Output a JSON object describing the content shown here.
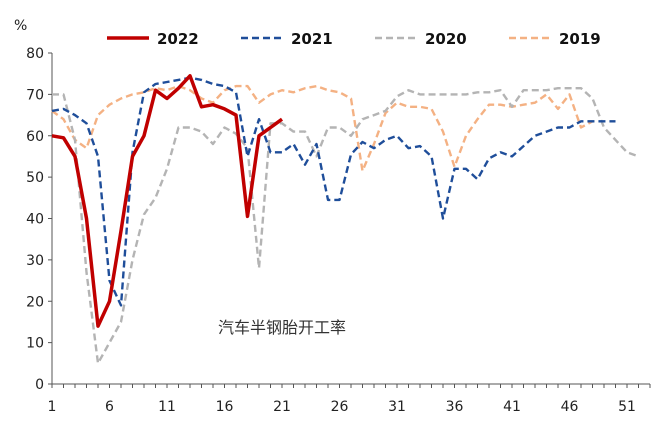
{
  "chart_data": {
    "type": "line",
    "y_unit": "%",
    "annotation": "汽车半钢胎开工率",
    "xlabel": "",
    "ylabel": "",
    "xlim": [
      1,
      53
    ],
    "ylim": [
      0,
      80
    ],
    "x_ticks": [
      1,
      6,
      11,
      16,
      21,
      26,
      31,
      36,
      41,
      46,
      51
    ],
    "y_ticks": [
      0,
      10,
      20,
      30,
      40,
      50,
      60,
      70,
      80
    ],
    "grid": false,
    "legend_position": "top",
    "series": [
      {
        "name": "2022",
        "color": "#c00000",
        "dash": "solid",
        "x": [
          1,
          2,
          3,
          4,
          5,
          6,
          7,
          8,
          9,
          10,
          11,
          12,
          13,
          14,
          15,
          16,
          17,
          18,
          19,
          20,
          21
        ],
        "values": [
          60,
          59.5,
          55,
          40,
          14,
          20,
          37,
          55,
          60,
          71,
          69,
          71.5,
          74.5,
          67,
          67.5,
          66.5,
          65,
          40.5,
          60,
          62,
          64
        ]
      },
      {
        "name": "2021",
        "color": "#1f4e9a",
        "dash": "dashed",
        "x": [
          1,
          2,
          3,
          4,
          5,
          6,
          7,
          8,
          9,
          10,
          11,
          12,
          13,
          14,
          15,
          16,
          17,
          18,
          19,
          20,
          21,
          22,
          23,
          24,
          25,
          26,
          27,
          28,
          29,
          30,
          31,
          32,
          33,
          34,
          35,
          36,
          37,
          38,
          39,
          40,
          41,
          42,
          43,
          44,
          45,
          46,
          47,
          48,
          49,
          50
        ],
        "values": [
          66,
          66.5,
          65,
          63,
          55,
          25,
          19,
          56,
          70.5,
          72.5,
          73,
          73.5,
          74,
          73.5,
          72.5,
          72,
          70.5,
          55,
          64,
          56,
          56,
          58,
          53,
          58,
          44.5,
          44.5,
          55.5,
          58.5,
          57,
          59,
          60,
          57,
          57.5,
          55,
          40,
          52,
          52,
          49.5,
          54.5,
          56,
          55,
          57.5,
          60,
          61,
          62,
          62,
          63.5,
          63.5,
          63.5,
          63.5
        ]
      },
      {
        "name": "2020",
        "color": "#b4b4b4",
        "dash": "dashed",
        "x": [
          1,
          2,
          3,
          4,
          5,
          6,
          7,
          8,
          9,
          10,
          11,
          12,
          13,
          14,
          15,
          16,
          17,
          18,
          19,
          20,
          21,
          22,
          23,
          24,
          25,
          26,
          27,
          28,
          29,
          30,
          31,
          32,
          33,
          34,
          35,
          36,
          37,
          38,
          39,
          40,
          41,
          42,
          43,
          44,
          45,
          46,
          47,
          48,
          49,
          50,
          51,
          52
        ],
        "values": [
          70,
          70,
          59,
          27,
          5,
          10,
          15,
          30,
          41,
          45,
          52,
          62,
          62,
          61,
          58,
          62,
          60.5,
          57,
          28,
          63,
          63,
          61,
          61,
          55,
          62,
          62,
          60,
          64,
          65,
          66,
          69.5,
          71,
          70,
          70,
          70,
          70,
          70,
          70.5,
          70.5,
          71,
          67,
          71,
          71,
          71,
          71.5,
          71.5,
          71.5,
          69,
          62,
          59,
          56,
          55
        ]
      },
      {
        "name": "2019",
        "color": "#f4b183",
        "dash": "dashed",
        "x": [
          1,
          2,
          3,
          4,
          5,
          6,
          7,
          8,
          9,
          10,
          11,
          12,
          13,
          14,
          15,
          16,
          17,
          18,
          19,
          20,
          21,
          22,
          23,
          24,
          25,
          26,
          27,
          28,
          29,
          30,
          31,
          32,
          33,
          34,
          35,
          36,
          37,
          38,
          39,
          40,
          41,
          42,
          43,
          44,
          45,
          46,
          47,
          48
        ],
        "values": [
          66,
          64,
          59,
          57,
          65,
          67.5,
          69,
          70,
          70.5,
          71.5,
          71,
          72,
          71,
          69,
          68,
          71,
          72,
          72,
          68,
          70,
          71,
          70.5,
          71.5,
          72,
          71,
          70.5,
          69,
          51.5,
          58,
          65.5,
          68,
          67,
          67,
          66.5,
          61,
          52.5,
          60,
          64,
          67.5,
          67.5,
          67,
          67.5,
          68,
          70,
          66.5,
          70,
          62,
          63.5
        ]
      }
    ]
  }
}
